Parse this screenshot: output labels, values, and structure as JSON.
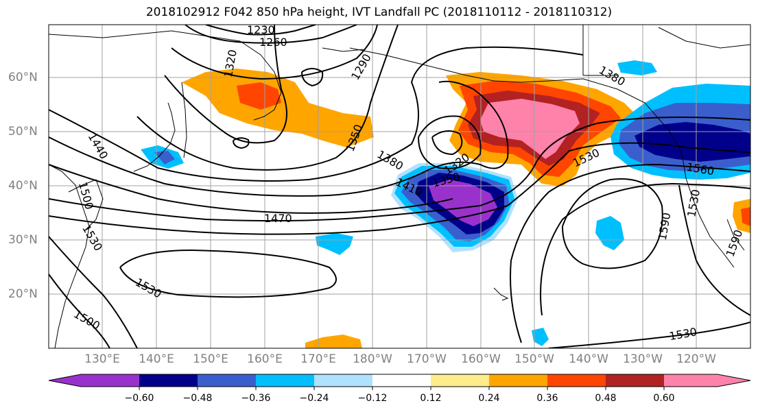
{
  "title": "2018102912 F042 850 hPa height, IVT Landfall PC (2018110112 - 2018110312)",
  "lat_labels": [
    "60°N",
    "50°N",
    "40°N",
    "30°N",
    "20°N"
  ],
  "lon_labels": [
    "130°E",
    "140°E",
    "150°E",
    "160°E",
    "170°E",
    "180°W",
    "170°W",
    "160°W",
    "150°W",
    "140°W",
    "130°W",
    "120°W"
  ],
  "contour_labels": [
    "1230",
    "1260",
    "1320",
    "1290",
    "1350",
    "1380",
    "1320",
    "1350",
    "1380",
    "1410",
    "1440",
    "1470",
    "1500",
    "1530",
    "1530",
    "1500",
    "1530",
    "1560",
    "1590",
    "1530",
    "1590",
    "1530"
  ],
  "colorbar": {
    "ticks": [
      "−0.60",
      "−0.48",
      "−0.36",
      "−0.24",
      "−0.12",
      "0.12",
      "0.24",
      "0.36",
      "0.48",
      "0.60"
    ],
    "colors": [
      "#9932cc",
      "#00008b",
      "#3a5fcd",
      "#00bfff",
      "#b0e2ff",
      "#ffffff",
      "#ffec8b",
      "#ffa500",
      "#ff4500",
      "#b22222",
      "#ff82ab"
    ]
  }
}
